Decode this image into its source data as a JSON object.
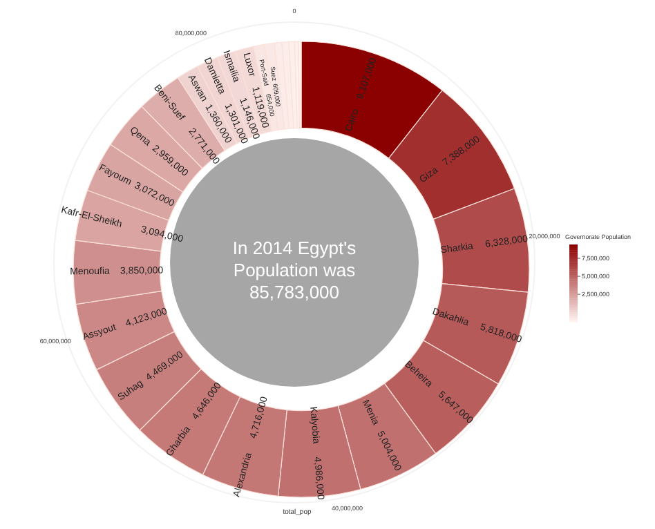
{
  "chart_data": {
    "type": "donut",
    "title": "In 2014 Egypt's Population was 85,783,000",
    "xlabel": "total_pop",
    "clabel": "Governorate Population",
    "categories": [
      "Cairo",
      "Giza",
      "Sharkia",
      "Dakahlia",
      "Beheira",
      "Menia",
      "Kalyobia",
      "Alexandria",
      "Gharbia",
      "Suhag",
      "Assyout",
      "Menoufia",
      "Kafr-El-Sheikh",
      "Fayoum",
      "Qena",
      "Beni-Suef",
      "Aswan",
      "Damietta",
      "Ismailia",
      "Luxor",
      "Port-Said",
      "Suez",
      null,
      null,
      null,
      null,
      null
    ],
    "values": [
      9107000,
      7388000,
      6328000,
      5818000,
      5647000,
      5004000,
      4986000,
      4716000,
      4646000,
      4469000,
      4123000,
      3850000,
      3094000,
      3072000,
      2959000,
      2771000,
      1360000,
      1301000,
      1146000,
      1119000,
      654000,
      609000,
      447000,
      434000,
      345000,
      225000,
      165000
    ],
    "value_labels": [
      "9,107,000",
      "7,388,000",
      "6,328,000",
      "5,818,000",
      "5,647,000",
      "5,004,000",
      "4,986,000",
      "4,716,000",
      "4,646,000",
      "4,469,000",
      "4,123,000",
      "3,850,000",
      "3,094,000",
      "3,072,000",
      "2,959,000",
      "2,771,000",
      "1,360,000",
      "1,301,000",
      "1,146,000",
      "1,119,000",
      "654,000",
      "609,000",
      null,
      null,
      null,
      null,
      null
    ],
    "annotations": [
      "0",
      "20,000,000",
      "40,000,000",
      "60,000,000",
      "80,000,000",
      "7,500,000",
      "5,000,000",
      "2,500,000"
    ]
  }
}
